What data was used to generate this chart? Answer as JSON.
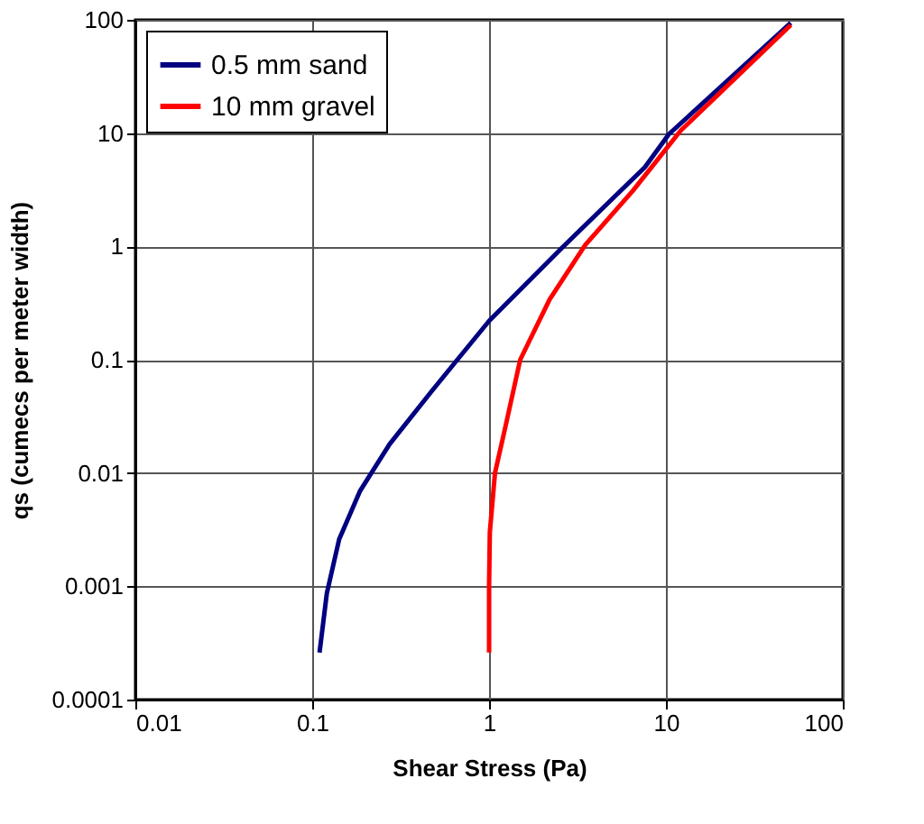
{
  "chart_data": {
    "type": "line",
    "xlabel": "Shear Stress (Pa)",
    "ylabel": "qs (cumecs per meter width)",
    "log": "xy",
    "xlim": [
      0.01,
      100
    ],
    "ylim": [
      0.0001,
      100
    ],
    "xticks": [
      0.01,
      0.1,
      1,
      10,
      100
    ],
    "yticks": [
      0.0001,
      0.001,
      0.01,
      0.1,
      1,
      10,
      100
    ],
    "grid": true,
    "legend": "top left",
    "marker": "none",
    "line_style": "solid",
    "series": [
      {
        "name": "0.5 mm sand",
        "color": "#000080",
        "x": [
          0.11,
          0.121,
          0.142,
          0.186,
          0.274,
          0.47,
          1,
          2.58,
          7.6,
          10.4,
          50.8
        ],
        "values": [
          0.00026,
          0.00087,
          0.0026,
          0.0069,
          0.018,
          0.052,
          0.22,
          0.97,
          5.0,
          9.8,
          94
        ]
      },
      {
        "name": "10 mm gravel",
        "color": "#ff0000",
        "x": [
          1.0,
          1.0,
          1.01,
          1.08,
          1.24,
          1.5,
          2.2,
          3.5,
          6.5,
          12.1,
          50.8
        ],
        "values": [
          0.00026,
          0.001,
          0.003,
          0.01,
          0.026,
          0.1,
          0.34,
          1.03,
          3.1,
          10.5,
          90
        ]
      }
    ]
  }
}
